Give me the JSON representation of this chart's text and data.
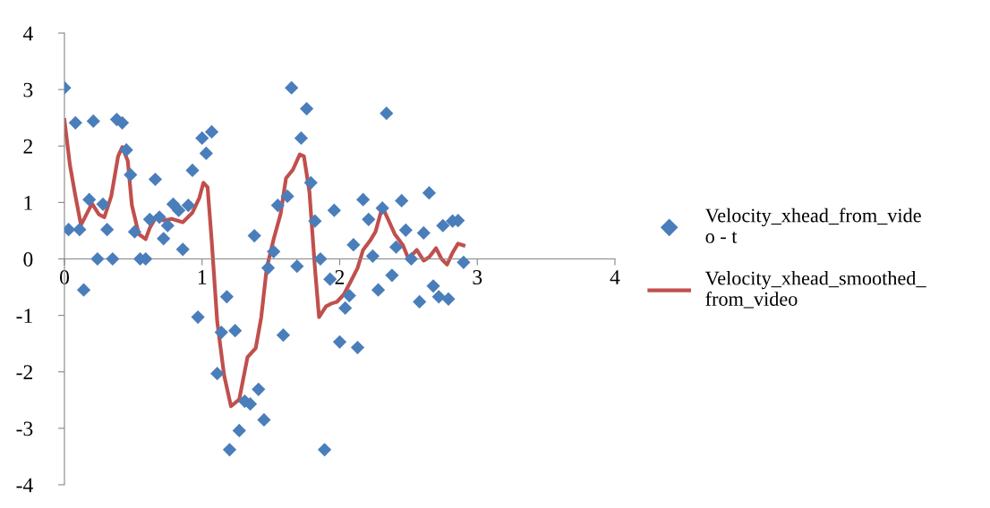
{
  "chart_data": {
    "type": "scatter",
    "xlim": [
      0,
      4
    ],
    "ylim": [
      -4,
      4
    ],
    "xticks": [
      0,
      1,
      2,
      3,
      4
    ],
    "yticks": [
      -4,
      -3,
      -2,
      -1,
      0,
      1,
      2,
      3,
      4
    ],
    "grid": false,
    "legend": "right",
    "series": [
      {
        "name": "Velocity_xhead_from_video - t",
        "marker": "diamond",
        "color": "#4a7ebb",
        "x": [
          0,
          0.03,
          0.08,
          0.11,
          0.14,
          0.18,
          0.21,
          0.24,
          0.28,
          0.31,
          0.35,
          0.38,
          0.42,
          0.45,
          0.48,
          0.51,
          0.55,
          0.59,
          0.62,
          0.66,
          0.69,
          0.72,
          0.75,
          0.79,
          0.83,
          0.86,
          0.9,
          0.93,
          0.97,
          1.0,
          1.03,
          1.07,
          1.11,
          1.14,
          1.18,
          1.2,
          1.24,
          1.27,
          1.31,
          1.35,
          1.38,
          1.41,
          1.45,
          1.48,
          1.52,
          1.55,
          1.59,
          1.62,
          1.65,
          1.69,
          1.72,
          1.76,
          1.79,
          1.82,
          1.86,
          1.89,
          1.93,
          1.96,
          2.0,
          2.04,
          2.07,
          2.1,
          2.13,
          2.17,
          2.21,
          2.24,
          2.28,
          2.31,
          2.34,
          2.38,
          2.41,
          2.45,
          2.48,
          2.52,
          2.58,
          2.61,
          2.65,
          2.68,
          2.72,
          2.75,
          2.79,
          2.82,
          2.86,
          2.9
        ],
        "values": [
          3.03,
          0.52,
          2.41,
          0.52,
          -0.55,
          1.05,
          2.44,
          0,
          0.97,
          0.52,
          0,
          2.47,
          2.41,
          1.93,
          1.49,
          0.48,
          0,
          0,
          0.7,
          1.41,
          0.74,
          0.36,
          0.59,
          0.97,
          0.86,
          0.17,
          0.95,
          1.57,
          -1.03,
          2.14,
          1.87,
          2.25,
          -2.03,
          -1.3,
          -0.67,
          -3.38,
          -1.27,
          -3.04,
          -2.52,
          -2.57,
          0.41,
          -2.31,
          -2.85,
          -0.16,
          0.13,
          0.95,
          -1.35,
          1.11,
          3.03,
          -0.13,
          2.14,
          2.66,
          1.35,
          0.67,
          0,
          -3.38,
          -0.36,
          0.86,
          -1.47,
          -0.87,
          -0.65,
          0.25,
          -1.57,
          1.05,
          0.7,
          0.05,
          -0.55,
          0.9,
          2.58,
          -0.29,
          0.21,
          1.03,
          0.51,
          0,
          -0.76,
          0.46,
          1.17,
          -0.48,
          -0.67,
          0.59,
          -0.71,
          0.67,
          0.68,
          -0.06
        ]
      },
      {
        "name": "Velocity_xhead_smoothed_from_video",
        "type": "line",
        "marker": "none",
        "line_style": "solid",
        "color": "#c0504d",
        "x": [
          0,
          0.04,
          0.08,
          0.12,
          0.16,
          0.2,
          0.25,
          0.29,
          0.34,
          0.39,
          0.42,
          0.46,
          0.49,
          0.54,
          0.59,
          0.62,
          0.67,
          0.72,
          0.78,
          0.86,
          0.93,
          0.98,
          1.01,
          1.04,
          1.07,
          1.11,
          1.16,
          1.21,
          1.27,
          1.33,
          1.39,
          1.43,
          1.47,
          1.52,
          1.57,
          1.61,
          1.66,
          1.71,
          1.74,
          1.78,
          1.82,
          1.85,
          1.9,
          1.94,
          1.98,
          2.03,
          2.08,
          2.13,
          2.17,
          2.22,
          2.26,
          2.31,
          2.35,
          2.4,
          2.46,
          2.5,
          2.56,
          2.61,
          2.65,
          2.7,
          2.74,
          2.78,
          2.82,
          2.86,
          2.9
        ],
        "values": [
          2.46,
          1.66,
          1.11,
          0.6,
          0.79,
          0.98,
          0.79,
          0.74,
          1.11,
          1.82,
          1.98,
          1.74,
          0.95,
          0.44,
          0.35,
          0.55,
          0.76,
          0.68,
          0.71,
          0.65,
          0.82,
          1.08,
          1.35,
          1.27,
          0.32,
          -1.11,
          -2.06,
          -2.61,
          -2.49,
          -1.74,
          -1.58,
          -1.03,
          -0.16,
          0.35,
          0.79,
          1.43,
          1.58,
          1.85,
          1.82,
          1.19,
          -0.16,
          -1.03,
          -0.84,
          -0.79,
          -0.76,
          -0.63,
          -0.4,
          -0.16,
          0.16,
          0.32,
          0.48,
          0.92,
          0.71,
          0.44,
          0.24,
          0,
          0.16,
          -0.03,
          0.03,
          0.19,
          0,
          -0.1,
          0.11,
          0.27,
          0.24
        ]
      }
    ]
  }
}
